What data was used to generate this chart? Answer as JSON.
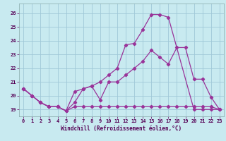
{
  "background_color": "#c8eaf0",
  "grid_color": "#a0c8d8",
  "line_color": "#993399",
  "xlim": [
    -0.5,
    23.5
  ],
  "ylim": [
    18.5,
    26.7
  ],
  "yticks": [
    19,
    20,
    21,
    22,
    23,
    24,
    25,
    26
  ],
  "xticks": [
    0,
    1,
    2,
    3,
    4,
    5,
    6,
    7,
    8,
    9,
    10,
    11,
    12,
    13,
    14,
    15,
    16,
    17,
    18,
    19,
    20,
    21,
    22,
    23
  ],
  "xlabel": "Windchill (Refroidissement éolien,°C)",
  "line1_x": [
    0,
    1,
    2,
    3,
    4,
    5,
    6,
    7,
    8,
    9,
    10,
    11,
    12,
    13,
    14,
    15,
    16,
    17,
    18,
    19,
    20,
    21,
    22,
    23
  ],
  "line1_y": [
    20.5,
    20.0,
    19.5,
    19.2,
    19.2,
    18.9,
    19.2,
    19.2,
    19.2,
    19.2,
    19.2,
    19.2,
    19.2,
    19.2,
    19.2,
    19.2,
    19.2,
    19.2,
    19.2,
    19.2,
    19.2,
    19.2,
    19.2,
    19.0
  ],
  "line2_x": [
    0,
    1,
    2,
    3,
    4,
    5,
    6,
    7,
    8,
    9,
    10,
    11,
    12,
    13,
    14,
    15,
    16,
    17,
    18,
    19,
    20,
    21,
    22,
    23
  ],
  "line2_y": [
    20.5,
    20.0,
    19.5,
    19.2,
    19.2,
    18.9,
    19.5,
    20.5,
    20.7,
    19.7,
    21.0,
    21.0,
    21.5,
    22.0,
    22.5,
    23.3,
    22.8,
    22.3,
    23.5,
    23.5,
    21.2,
    21.2,
    19.9,
    19.0
  ],
  "line3_x": [
    0,
    1,
    2,
    3,
    4,
    5,
    6,
    7,
    8,
    9,
    10,
    11,
    12,
    13,
    14,
    15,
    16,
    17,
    20,
    21,
    22,
    23
  ],
  "line3_y": [
    20.5,
    20.0,
    19.5,
    19.2,
    19.2,
    18.9,
    20.3,
    20.5,
    20.7,
    21.0,
    21.5,
    22.0,
    23.7,
    23.8,
    24.8,
    25.9,
    25.9,
    25.7,
    19.0,
    19.0,
    19.0,
    19.0
  ]
}
